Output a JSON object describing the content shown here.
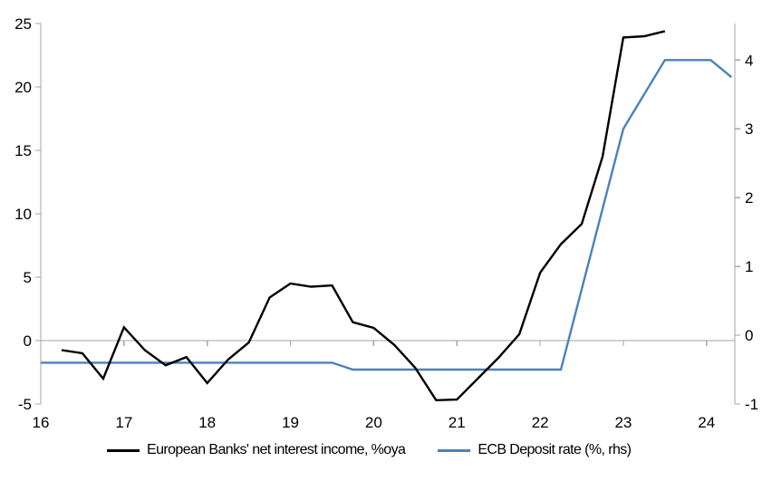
{
  "chart_data": {
    "type": "line",
    "title": "",
    "x_axis": {
      "ticks": [
        16,
        17,
        18,
        19,
        20,
        21,
        22,
        23,
        24
      ],
      "range": [
        16,
        24.34
      ],
      "grid": false
    },
    "left_axis": {
      "ticks": [
        -5,
        0,
        5,
        10,
        15,
        20,
        25
      ],
      "range": [
        -5,
        25
      ]
    },
    "right_axis": {
      "ticks": [
        -1,
        0,
        1,
        2,
        3,
        4
      ],
      "range": [
        -1,
        4.53
      ]
    },
    "zero_line_value": 0,
    "legend_position": "bottom",
    "series": [
      {
        "name": "European Banks' net interest income, %oya",
        "axis": "left",
        "color": "#000000",
        "points": [
          [
            16.25,
            -0.75
          ],
          [
            16.5,
            -1.0
          ],
          [
            16.75,
            -3.0
          ],
          [
            17.0,
            1.05
          ],
          [
            17.25,
            -0.75
          ],
          [
            17.5,
            -1.95
          ],
          [
            17.75,
            -1.3
          ],
          [
            18.0,
            -3.35
          ],
          [
            18.25,
            -1.5
          ],
          [
            18.5,
            -0.15
          ],
          [
            18.75,
            3.4
          ],
          [
            19.0,
            4.5
          ],
          [
            19.25,
            4.25
          ],
          [
            19.5,
            4.35
          ],
          [
            19.75,
            1.45
          ],
          [
            20.0,
            1.0
          ],
          [
            20.25,
            -0.35
          ],
          [
            20.5,
            -2.15
          ],
          [
            20.75,
            -4.7
          ],
          [
            21.0,
            -4.65
          ],
          [
            21.25,
            -3.0
          ],
          [
            21.5,
            -1.35
          ],
          [
            21.75,
            0.5
          ],
          [
            22.0,
            5.35
          ],
          [
            22.25,
            7.6
          ],
          [
            22.5,
            9.2
          ],
          [
            22.75,
            14.5
          ],
          [
            23.0,
            23.9
          ],
          [
            23.25,
            24.0
          ],
          [
            23.5,
            24.4
          ]
        ]
      },
      {
        "name": "ECB Deposit rate (%, rhs)",
        "axis": "right",
        "color": "#4a82ba",
        "points": [
          [
            16.0,
            -0.4
          ],
          [
            19.5,
            -0.4
          ],
          [
            19.75,
            -0.5
          ],
          [
            22.25,
            -0.5
          ],
          [
            23.0,
            3.0
          ],
          [
            23.5,
            4.0
          ],
          [
            24.05,
            4.0
          ],
          [
            24.3,
            3.75
          ]
        ]
      }
    ]
  },
  "colors": {
    "axis_gray": "#a6a6a6",
    "text": "#000000",
    "background": "#ffffff",
    "nii_line": "#000000",
    "deposit_rate_line": "#4a82ba"
  }
}
